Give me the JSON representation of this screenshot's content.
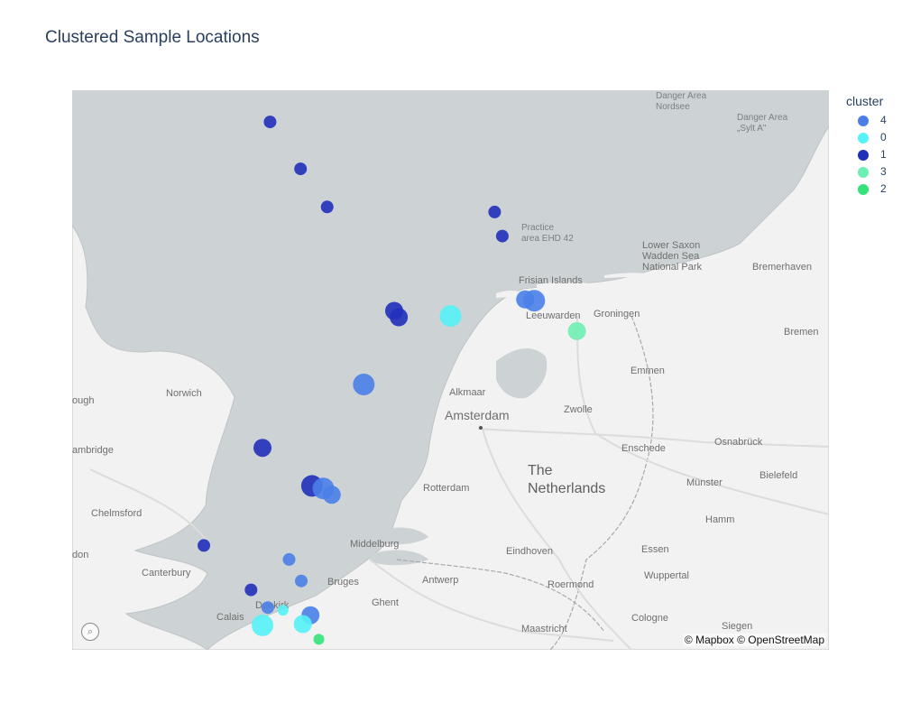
{
  "title": "Clustered Sample Locations",
  "map": {
    "attribution": "© Mapbox © OpenStreetMap",
    "place_labels": [
      {
        "name": "Danger Area\nNordsee",
        "class": "pl-sea"
      },
      {
        "name": "Danger Area\n„Sylt A\"",
        "class": "pl-sea"
      },
      {
        "name": "Practice\narea EHD 42",
        "class": "pl-sea"
      },
      {
        "name": "Lower Saxon\nWadden Sea\nNational Park",
        "class": "pl"
      },
      {
        "name": "Frisian Islands",
        "class": "pl"
      },
      {
        "name": "Bremerhaven",
        "class": "pl"
      },
      {
        "name": "Leeuwarden",
        "class": "pl"
      },
      {
        "name": "Groningen",
        "class": "pl"
      },
      {
        "name": "Bremen",
        "class": "pl"
      },
      {
        "name": "Emmen",
        "class": "pl"
      },
      {
        "name": "Norwich",
        "class": "pl"
      },
      {
        "name": "ough",
        "class": "pl"
      },
      {
        "name": "Alkmaar",
        "class": "pl"
      },
      {
        "name": "Amsterdam",
        "class": "pl-big"
      },
      {
        "name": "Zwolle",
        "class": "pl"
      },
      {
        "name": "ambridge",
        "class": "pl"
      },
      {
        "name": "Enschede",
        "class": "pl"
      },
      {
        "name": "Osnabrück",
        "class": "pl"
      },
      {
        "name": "The\nNetherlands",
        "class": "pl-country"
      },
      {
        "name": "Rotterdam",
        "class": "pl"
      },
      {
        "name": "Münster",
        "class": "pl"
      },
      {
        "name": "Bielefeld",
        "class": "pl"
      },
      {
        "name": "Chelmsford",
        "class": "pl"
      },
      {
        "name": "Hamm",
        "class": "pl"
      },
      {
        "name": "Middelburg",
        "class": "pl"
      },
      {
        "name": "don",
        "class": "pl"
      },
      {
        "name": "Essen",
        "class": "pl"
      },
      {
        "name": "Eindhoven",
        "class": "pl"
      },
      {
        "name": "Canterbury",
        "class": "pl"
      },
      {
        "name": "Wuppertal",
        "class": "pl"
      },
      {
        "name": "Bruges",
        "class": "pl"
      },
      {
        "name": "Antwerp",
        "class": "pl"
      },
      {
        "name": "Roermond",
        "class": "pl"
      },
      {
        "name": "Ghent",
        "class": "pl"
      },
      {
        "name": "Dunkirk",
        "class": "pl"
      },
      {
        "name": "Calais",
        "class": "pl"
      },
      {
        "name": "Cologne",
        "class": "pl"
      },
      {
        "name": "Maastricht",
        "class": "pl"
      },
      {
        "name": "Siegen",
        "class": "pl"
      }
    ]
  },
  "legend": {
    "title": "cluster",
    "items": [
      {
        "label": "4",
        "color": "#4a7fe8"
      },
      {
        "label": "0",
        "color": "#55f2f7"
      },
      {
        "label": "1",
        "color": "#2130bb"
      },
      {
        "label": "3",
        "color": "#6ff0b3"
      },
      {
        "label": "2",
        "color": "#33e37a"
      }
    ]
  },
  "points": [
    {
      "cluster": "1",
      "lon": 3.55,
      "lat": 55.35,
      "size": "s"
    },
    {
      "cluster": "1",
      "lon": 3.95,
      "lat": 54.98,
      "size": "s"
    },
    {
      "cluster": "1",
      "lon": 4.3,
      "lat": 54.68,
      "size": "s"
    },
    {
      "cluster": "1",
      "lon": 6.5,
      "lat": 54.64,
      "size": "s"
    },
    {
      "cluster": "1",
      "lon": 6.6,
      "lat": 54.45,
      "size": "s"
    },
    {
      "cluster": "4",
      "lon": 6.9,
      "lat": 53.95,
      "size": "m"
    },
    {
      "cluster": "4",
      "lon": 7.02,
      "lat": 53.94,
      "size": "l"
    },
    {
      "cluster": "1",
      "lon": 5.18,
      "lat": 53.86,
      "size": "m"
    },
    {
      "cluster": "1",
      "lon": 5.24,
      "lat": 53.81,
      "size": "m"
    },
    {
      "cluster": "0",
      "lon": 5.92,
      "lat": 53.82,
      "size": "l"
    },
    {
      "cluster": "3",
      "lon": 7.58,
      "lat": 53.7,
      "size": "m"
    },
    {
      "cluster": "4",
      "lon": 4.78,
      "lat": 53.28,
      "size": "l"
    },
    {
      "cluster": "1",
      "lon": 3.45,
      "lat": 52.78,
      "size": "m"
    },
    {
      "cluster": "1",
      "lon": 4.1,
      "lat": 52.48,
      "size": "l"
    },
    {
      "cluster": "4",
      "lon": 4.25,
      "lat": 52.46,
      "size": "l"
    },
    {
      "cluster": "4",
      "lon": 4.36,
      "lat": 52.41,
      "size": "m"
    },
    {
      "cluster": "1",
      "lon": 2.68,
      "lat": 52.01,
      "size": "s"
    },
    {
      "cluster": "4",
      "lon": 3.8,
      "lat": 51.9,
      "size": "s"
    },
    {
      "cluster": "4",
      "lon": 3.96,
      "lat": 51.73,
      "size": "s"
    },
    {
      "cluster": "1",
      "lon": 3.3,
      "lat": 51.66,
      "size": "s"
    },
    {
      "cluster": "4",
      "lon": 3.52,
      "lat": 51.52,
      "size": "s"
    },
    {
      "cluster": "0",
      "lon": 3.72,
      "lat": 51.5,
      "size": "xs"
    },
    {
      "cluster": "4",
      "lon": 4.08,
      "lat": 51.46,
      "size": "m"
    },
    {
      "cluster": "0",
      "lon": 3.45,
      "lat": 51.38,
      "size": "l"
    },
    {
      "cluster": "0",
      "lon": 3.98,
      "lat": 51.39,
      "size": "m"
    },
    {
      "cluster": "2",
      "lon": 4.19,
      "lat": 51.27,
      "size": "xs"
    }
  ]
}
